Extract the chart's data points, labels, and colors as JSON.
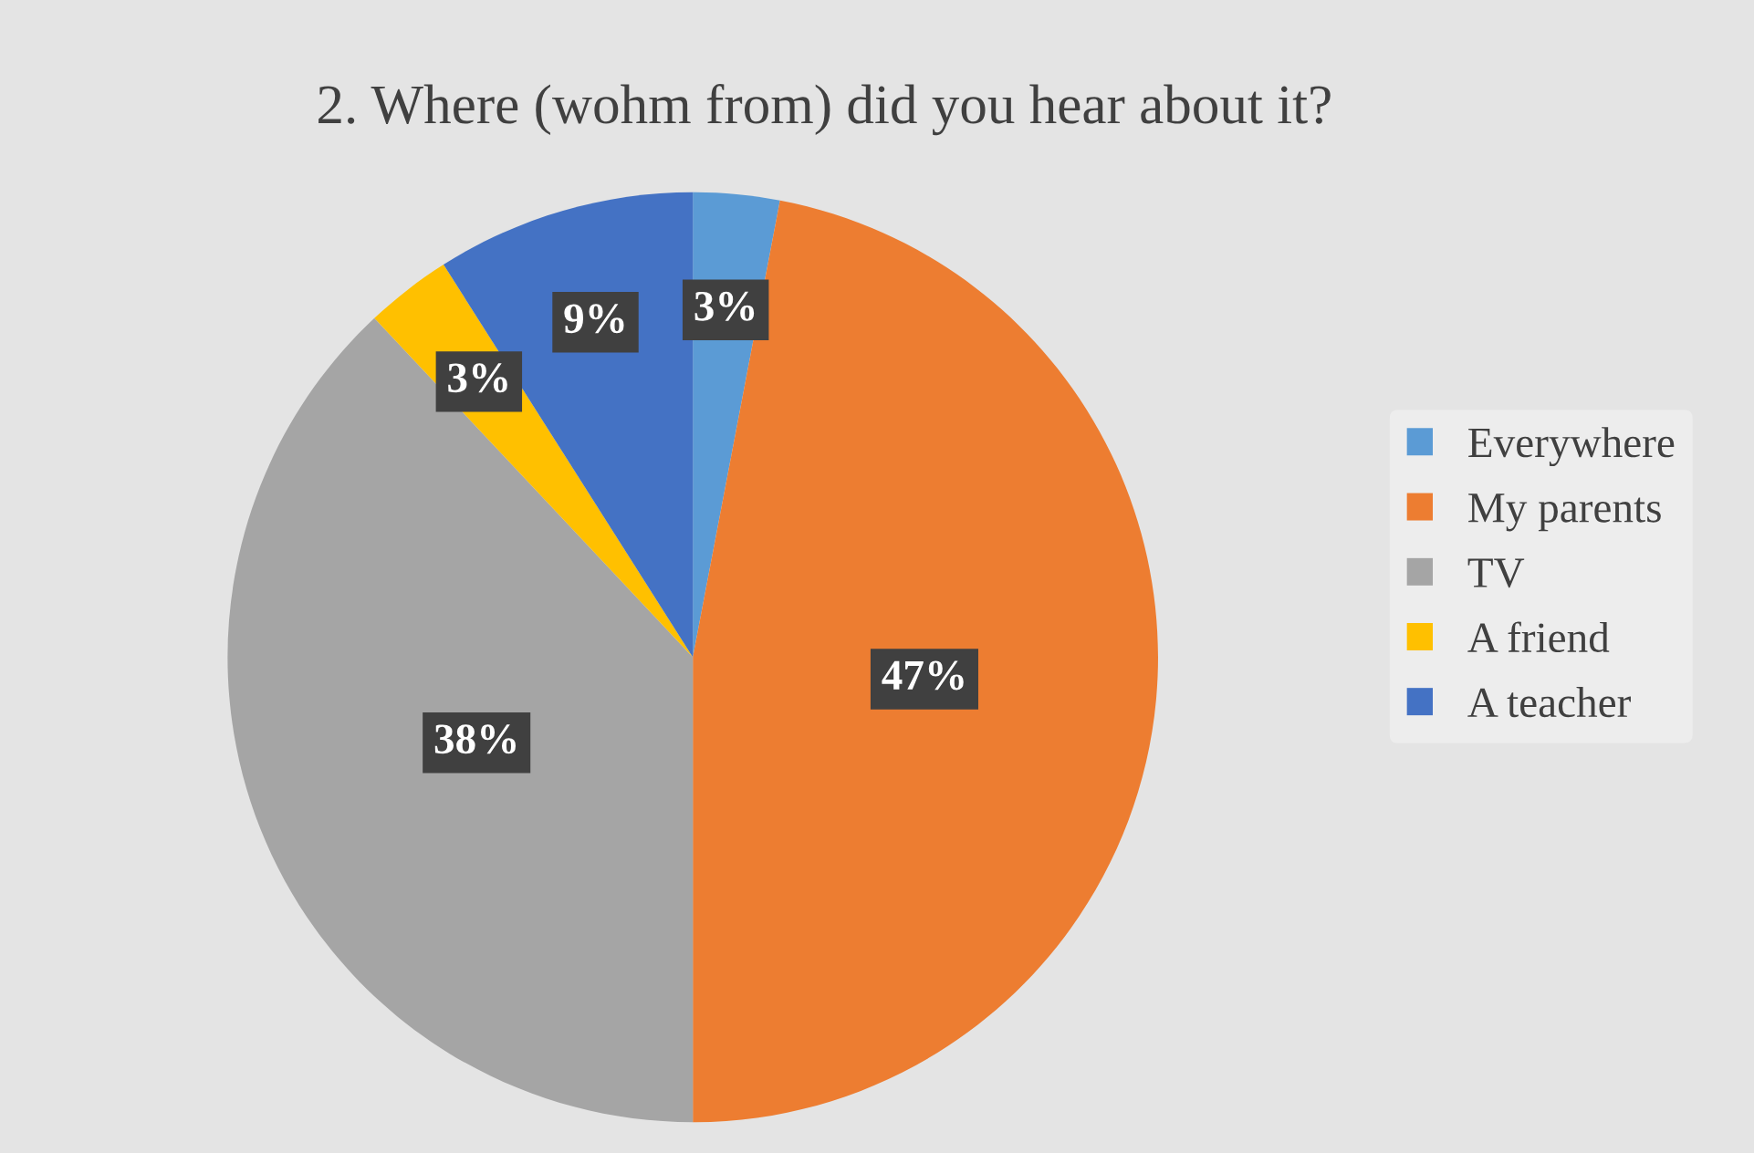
{
  "chart_data": {
    "type": "pie",
    "title": "2. Where (wohm from) did you hear about it?",
    "categories": [
      "Everywhere",
      "My parents",
      "TV",
      "A friend",
      "A teacher"
    ],
    "values": [
      3,
      47,
      38,
      3,
      9
    ],
    "colors": [
      "#5b9bd5",
      "#ed7d31",
      "#a5a5a5",
      "#ffc000",
      "#4472c4"
    ],
    "value_labels": [
      "3%",
      "47%",
      "38%",
      "3%",
      "9%"
    ],
    "legend": "right"
  }
}
